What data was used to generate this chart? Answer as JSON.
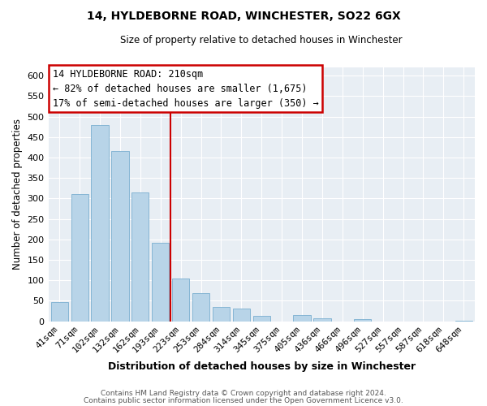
{
  "title": "14, HYLDEBORNE ROAD, WINCHESTER, SO22 6GX",
  "subtitle": "Size of property relative to detached houses in Winchester",
  "xlabel": "Distribution of detached houses by size in Winchester",
  "ylabel": "Number of detached properties",
  "footer_lines": [
    "Contains HM Land Registry data © Crown copyright and database right 2024.",
    "Contains public sector information licensed under the Open Government Licence v3.0."
  ],
  "bar_labels": [
    "41sqm",
    "71sqm",
    "102sqm",
    "132sqm",
    "162sqm",
    "193sqm",
    "223sqm",
    "253sqm",
    "284sqm",
    "314sqm",
    "345sqm",
    "375sqm",
    "405sqm",
    "436sqm",
    "466sqm",
    "496sqm",
    "527sqm",
    "557sqm",
    "587sqm",
    "618sqm",
    "648sqm"
  ],
  "bar_values": [
    46,
    310,
    480,
    415,
    315,
    192,
    104,
    69,
    35,
    30,
    14,
    0,
    15,
    8,
    0,
    5,
    0,
    0,
    0,
    0,
    2
  ],
  "bar_color": "#b8d4e8",
  "bar_edge_color": "#7aaed0",
  "vline_color": "#cc0000",
  "ylim": [
    0,
    620
  ],
  "yticks": [
    0,
    50,
    100,
    150,
    200,
    250,
    300,
    350,
    400,
    450,
    500,
    550,
    600
  ],
  "annotation_title": "14 HYLDEBORNE ROAD: 210sqm",
  "annotation_line1": "← 82% of detached houses are smaller (1,675)",
  "annotation_line2": "17% of semi-detached houses are larger (350) →",
  "annotation_box_facecolor": "#ffffff",
  "annotation_box_edgecolor": "#cc0000",
  "plot_bg_color": "#e8eef4",
  "fig_bg_color": "#ffffff",
  "grid_color": "#ffffff",
  "vline_bar_index": 6
}
